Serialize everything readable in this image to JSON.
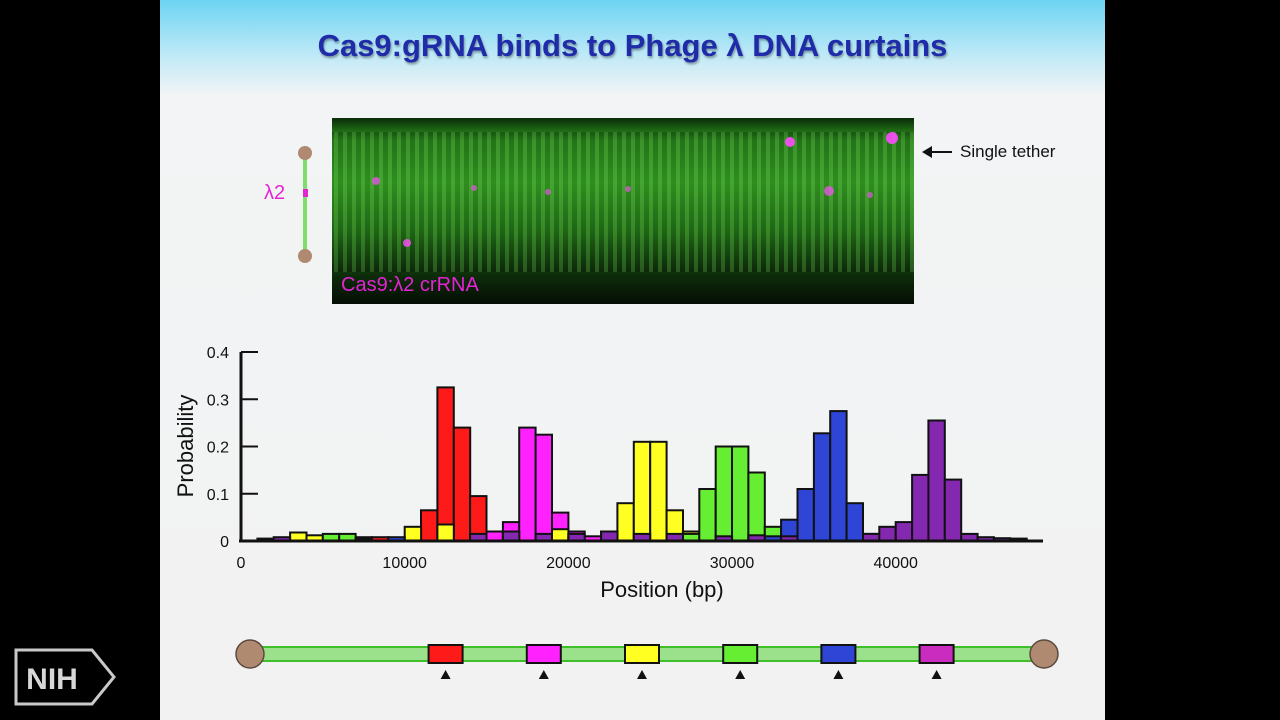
{
  "slide": {
    "title": "Cas9:gRNA binds to Phage λ DNA curtains",
    "micrograph_caption": "Cas9:λ2 crRNA",
    "tether_label": "Single tether",
    "lambda_label": "λ2",
    "logo_text": "NIH"
  },
  "colors": {
    "title": "#1f2ba8",
    "magenta_label": "#e323d4",
    "dna": "#7ddf6a",
    "bead": "#b08a70"
  },
  "chart_data": {
    "type": "bar",
    "xlabel": "Position (bp)",
    "ylabel": "Probability",
    "xlim": [
      0,
      49000
    ],
    "ylim": [
      0,
      0.4
    ],
    "xticks": [
      0,
      10000,
      20000,
      30000,
      40000
    ],
    "yticks": [
      0,
      0.1,
      0.2,
      0.3,
      0.4
    ],
    "ytick_labels": [
      "0",
      "0.1",
      "0.2",
      "0.3",
      "0.4"
    ],
    "bin_width": 1000,
    "site_markers": [
      12500,
      18500,
      24500,
      30500,
      36500,
      42500
    ],
    "series": [
      {
        "color": "#ff1a1a",
        "bins": [
          [
            3500,
            0.008
          ],
          [
            5500,
            0.01
          ],
          [
            8500,
            0.008
          ],
          [
            10500,
            0.01
          ],
          [
            11500,
            0.065
          ],
          [
            12500,
            0.325
          ],
          [
            13500,
            0.24
          ],
          [
            14500,
            0.095
          ],
          [
            15500,
            0.02
          ],
          [
            16500,
            0.008
          ]
        ]
      },
      {
        "color": "#ff22ff",
        "bins": [
          [
            3500,
            0.005
          ],
          [
            7500,
            0.008
          ],
          [
            15500,
            0.02
          ],
          [
            16500,
            0.04
          ],
          [
            17500,
            0.24
          ],
          [
            18500,
            0.225
          ],
          [
            19500,
            0.06
          ],
          [
            20500,
            0.02
          ],
          [
            21500,
            0.01
          ],
          [
            27500,
            0.005
          ]
        ]
      },
      {
        "color": "#ffff22",
        "bins": [
          [
            3500,
            0.018
          ],
          [
            4500,
            0.012
          ],
          [
            6500,
            0.012
          ],
          [
            10500,
            0.03
          ],
          [
            12500,
            0.035
          ],
          [
            19500,
            0.025
          ],
          [
            22500,
            0.02
          ],
          [
            23500,
            0.08
          ],
          [
            24500,
            0.21
          ],
          [
            25500,
            0.21
          ],
          [
            26500,
            0.065
          ],
          [
            27500,
            0.02
          ]
        ]
      },
      {
        "color": "#66ee33",
        "bins": [
          [
            5500,
            0.015
          ],
          [
            6500,
            0.015
          ],
          [
            27500,
            0.015
          ],
          [
            28500,
            0.11
          ],
          [
            29500,
            0.2
          ],
          [
            30500,
            0.2
          ],
          [
            31500,
            0.145
          ],
          [
            32500,
            0.03
          ],
          [
            33500,
            0.01
          ]
        ]
      },
      {
        "color": "#2e45d6",
        "bins": [
          [
            1500,
            0.005
          ],
          [
            9500,
            0.008
          ],
          [
            32500,
            0.01
          ],
          [
            33500,
            0.045
          ],
          [
            34500,
            0.11
          ],
          [
            35500,
            0.228
          ],
          [
            36500,
            0.275
          ],
          [
            37500,
            0.08
          ],
          [
            38500,
            0.015
          ]
        ]
      },
      {
        "color": "#8428b0",
        "bins": [
          [
            2500,
            0.008
          ],
          [
            7500,
            0.005
          ],
          [
            14500,
            0.015
          ],
          [
            16500,
            0.02
          ],
          [
            18500,
            0.015
          ],
          [
            20500,
            0.015
          ],
          [
            22500,
            0.02
          ],
          [
            24500,
            0.015
          ],
          [
            26500,
            0.015
          ],
          [
            29500,
            0.01
          ],
          [
            31500,
            0.012
          ],
          [
            33500,
            0.01
          ],
          [
            38500,
            0.015
          ],
          [
            39500,
            0.03
          ],
          [
            40500,
            0.04
          ],
          [
            41500,
            0.14
          ],
          [
            42500,
            0.255
          ],
          [
            43500,
            0.13
          ],
          [
            44500,
            0.015
          ],
          [
            45500,
            0.008
          ],
          [
            46500,
            0.006
          ],
          [
            47500,
            0.005
          ]
        ]
      }
    ]
  }
}
